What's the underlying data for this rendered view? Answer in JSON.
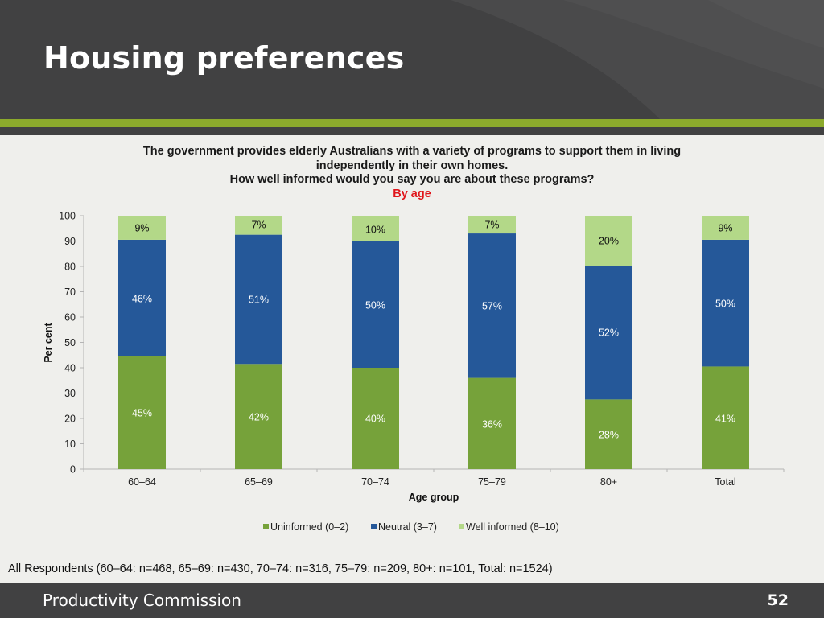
{
  "slide": {
    "title": "Housing preferences",
    "footer_org": "Productivity Commission",
    "page_number": "52",
    "footnote": "All Respondents (60–64: n=468, 65–69: n=430, 70–74: n=316, 75–79: n=209, 80+: n=101, Total: n=1524)"
  },
  "colors": {
    "header_bg": "#414142",
    "accent_green": "#8caa2c",
    "uninformed": "#76a23a",
    "neutral": "#255899",
    "well_informed": "#b3d888",
    "subtitle_red": "#e0151b"
  },
  "chart_data": {
    "type": "bar",
    "stacked": true,
    "title_lines": [
      "The government provides elderly Australians with a variety of programs to support them in living",
      "independently in their own homes.",
      "How well informed would you say you are about these programs?"
    ],
    "subtitle": "By age",
    "xlabel": "Age group",
    "ylabel": "Per cent",
    "ylim": [
      0,
      100
    ],
    "yticks": [
      0,
      10,
      20,
      30,
      40,
      50,
      60,
      70,
      80,
      90,
      100
    ],
    "grid": false,
    "legend_position": "bottom",
    "categories": [
      "60–64",
      "65–69",
      "70–74",
      "75–79",
      "80+",
      "Total"
    ],
    "series": [
      {
        "name": "Uninformed (0–2)",
        "values": [
          44.5,
          41.5,
          40,
          36,
          27.5,
          40.5
        ],
        "labels": [
          "45%",
          "42%",
          "40%",
          "36%",
          "28%",
          "41%"
        ]
      },
      {
        "name": "Neutral (3–7)",
        "values": [
          46,
          51,
          50,
          57,
          52.5,
          50
        ],
        "labels": [
          "46%",
          "51%",
          "50%",
          "57%",
          "52%",
          "50%"
        ]
      },
      {
        "name": "Well informed (8–10)",
        "values": [
          9.5,
          7.5,
          10,
          7,
          20,
          9.5
        ],
        "labels": [
          "9%",
          "7%",
          "10%",
          "7%",
          "20%",
          "9%"
        ]
      }
    ]
  }
}
